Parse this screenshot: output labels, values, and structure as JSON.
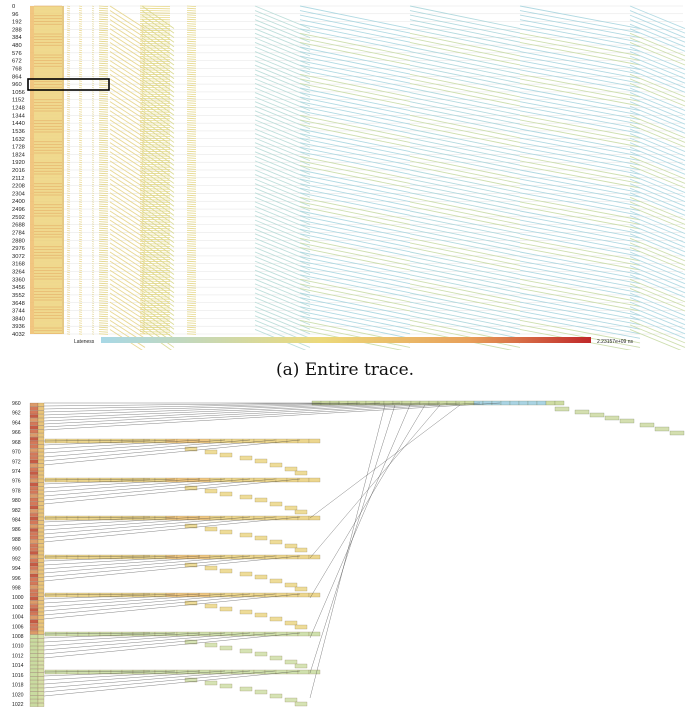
{
  "top": {
    "row_labels": [
      "0",
      "96",
      "192",
      "288",
      "384",
      "480",
      "576",
      "672",
      "768",
      "864",
      "960",
      "1056",
      "1152",
      "1248",
      "1344",
      "1440",
      "1536",
      "1632",
      "1728",
      "1824",
      "1920",
      "2016",
      "2112",
      "2208",
      "2304",
      "2400",
      "2496",
      "2592",
      "2688",
      "2784",
      "2880",
      "2976",
      "3072",
      "3168",
      "3264",
      "3360",
      "3456",
      "3552",
      "3648",
      "3744",
      "3840",
      "3936",
      "4032"
    ],
    "legend_label": "Lateness",
    "legend_max": "2.23157e+09 ns",
    "caption": "(a) Entire trace."
  },
  "bottom": {
    "row_labels": [
      "960",
      "962",
      "964",
      "966",
      "968",
      "970",
      "972",
      "974",
      "976",
      "978",
      "980",
      "982",
      "984",
      "986",
      "988",
      "990",
      "992",
      "994",
      "996",
      "998",
      "1000",
      "1002",
      "1004",
      "1006",
      "1008",
      "1010",
      "1012",
      "1014",
      "1016",
      "1018",
      "1020",
      "1022"
    ]
  },
  "colors": {
    "low": "#a8d8e6",
    "mid": "#ecd97a",
    "high": "#c0282a"
  }
}
